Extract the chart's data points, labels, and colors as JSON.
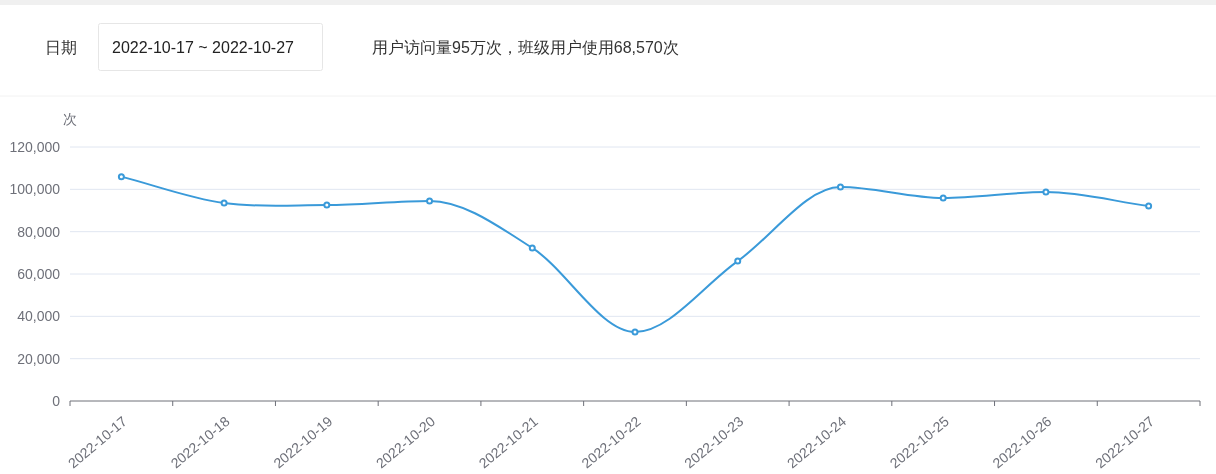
{
  "chart_data": {
    "type": "line",
    "annotations": [
      "日期",
      "2022-10-17 ~ 2022-10-27",
      "用户访问量95万次，班级用户使用68,570次"
    ],
    "ylabel": "次",
    "categories": [
      "2022-10-17",
      "2022-10-18",
      "2022-10-19",
      "2022-10-20",
      "2022-10-21",
      "2022-10-22",
      "2022-10-23",
      "2022-10-24",
      "2022-10-25",
      "2022-10-26",
      "2022-10-27"
    ],
    "series": [
      {
        "color": "#3a9ad9",
        "values": [
          106000,
          93500,
          92600,
          94500,
          72300,
          32600,
          66100,
          101100,
          95900,
          98700,
          92100
        ]
      }
    ],
    "ylim": [
      0,
      120000
    ],
    "yticks": [
      0,
      {
        "value": 20000,
        "label": "20,000"
      },
      {
        "value": 40000,
        "label": "40,000"
      },
      {
        "value": 60000,
        "label": "60,000"
      },
      {
        "value": 80000,
        "label": "80,000"
      },
      {
        "value": 100000,
        "label": "100,000"
      },
      {
        "value": 120000,
        "label": "120,000"
      }
    ],
    "grid": "y",
    "marker": "circle"
  }
}
